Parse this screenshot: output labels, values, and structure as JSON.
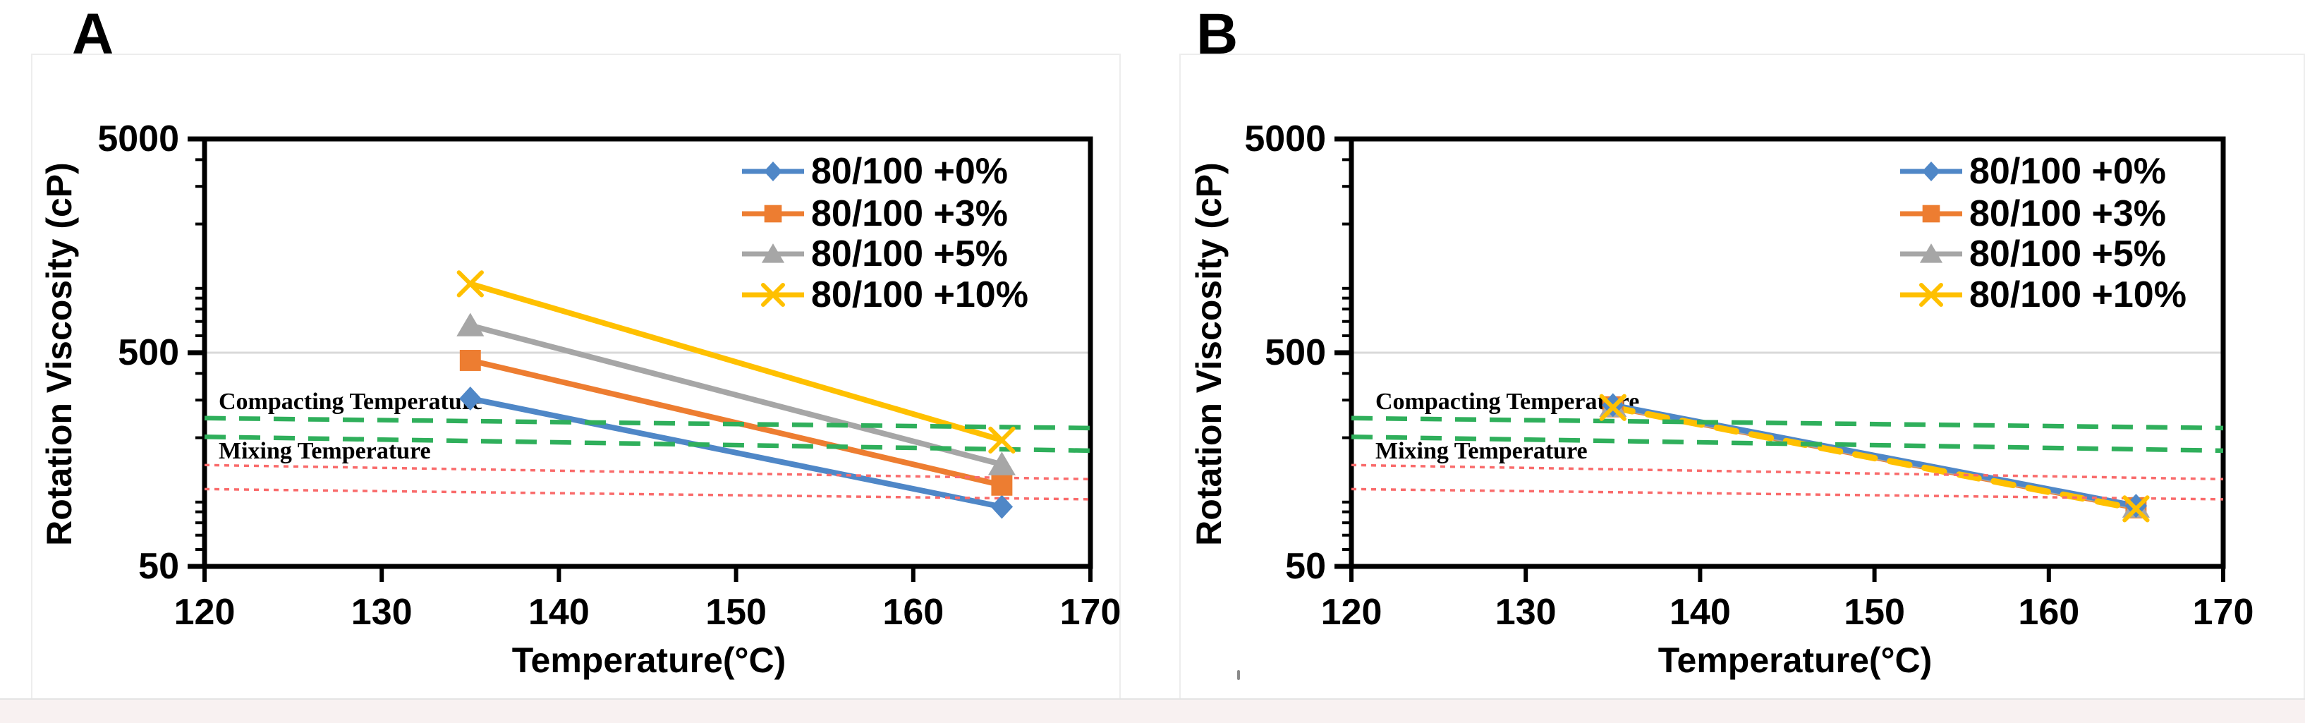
{
  "figure": {
    "background": "#FFFFFF",
    "separator_color": "#E4E4E4",
    "footer_strip_color": "#F8F1F1",
    "panel_border_color": "#EDEDED",
    "text_color": "#000000"
  },
  "chart_data": [
    {
      "type": "line",
      "panel_label": "A",
      "xlabel": "Temperature(°C)",
      "ylabel": "Rotation Viscosity (cP)",
      "x_axis": {
        "min": 120,
        "max": 170,
        "ticks": [
          120,
          130,
          140,
          150,
          160,
          170
        ]
      },
      "y_axis": {
        "scale": "log",
        "min": 50,
        "max": 5000,
        "ticks": [
          5000,
          500,
          50
        ],
        "minor_ticks": [
          4000,
          3000,
          2000,
          1000,
          900,
          800,
          700,
          600,
          400,
          300,
          200,
          100,
          90,
          80,
          70,
          60
        ]
      },
      "grid": {
        "y_gridlines_cp": [
          500
        ],
        "gridline_color": "#D9D9D9"
      },
      "legend_position": "top-right-inside",
      "series": [
        {
          "name": "80/100 +0%",
          "color": "#4F87C7",
          "marker": "diamond",
          "line_style": "solid",
          "x": [
            135,
            165
          ],
          "y": [
            305,
            95
          ]
        },
        {
          "name": "80/100 +3%",
          "color": "#ED7D31",
          "marker": "square",
          "line_style": "solid",
          "x": [
            135,
            165
          ],
          "y": [
            460,
            120
          ]
        },
        {
          "name": "80/100 +5%",
          "color": "#A6A6A6",
          "marker": "triangle",
          "line_style": "solid",
          "x": [
            135,
            165
          ],
          "y": [
            670,
            150
          ]
        },
        {
          "name": "80/100 +10%",
          "color": "#FFC000",
          "marker": "x",
          "line_style": "solid",
          "x": [
            135,
            165
          ],
          "y": [
            1050,
            195
          ]
        }
      ],
      "guide_lines": [
        {
          "group": "compacting",
          "color": "#2FAF5B",
          "style": "dashed",
          "cp_start": 247,
          "cp_end": 222
        },
        {
          "group": "compacting",
          "color": "#2FAF5B",
          "style": "dashed",
          "cp_start": 202,
          "cp_end": 174
        },
        {
          "group": "mixing",
          "color": "#F96B6B",
          "style": "dotted",
          "cp_start": 149,
          "cp_end": 128
        },
        {
          "group": "mixing",
          "color": "#F96B6B",
          "style": "dotted",
          "cp_start": 115,
          "cp_end": 103
        }
      ],
      "guide_labels": [
        {
          "text": "Compacting Temperature"
        },
        {
          "text": "Mixing Temperature"
        }
      ]
    },
    {
      "type": "line",
      "panel_label": "B",
      "xlabel": "Temperature(°C)",
      "ylabel": "Rotation Viscosity (cP)",
      "x_axis": {
        "min": 120,
        "max": 170,
        "ticks": [
          120,
          130,
          140,
          150,
          160,
          170
        ]
      },
      "y_axis": {
        "scale": "log",
        "min": 50,
        "max": 5000,
        "ticks": [
          5000,
          500,
          50
        ],
        "minor_ticks": [
          4000,
          3000,
          2000,
          1000,
          900,
          800,
          700,
          600,
          400,
          300,
          200,
          100,
          90,
          80,
          70,
          60
        ]
      },
      "grid": {
        "y_gridlines_cp": [
          500
        ],
        "gridline_color": "#D9D9D9"
      },
      "legend_position": "top-right-inside",
      "series": [
        {
          "name": "80/100 +0%",
          "color": "#4F87C7",
          "marker": "diamond",
          "line_style": "solid",
          "x": [
            135,
            165
          ],
          "y": [
            284,
            96
          ]
        },
        {
          "name": "80/100 +3%",
          "color": "#ED7D31",
          "marker": "square",
          "line_style": "solid",
          "x": [
            135,
            165
          ],
          "y": [
            279,
            94
          ]
        },
        {
          "name": "80/100 +5%",
          "color": "#A6A6A6",
          "marker": "triangle",
          "line_style": "solid",
          "x": [
            135,
            165
          ],
          "y": [
            281,
            95
          ]
        },
        {
          "name": "80/100 +10%",
          "color": "#FFC000",
          "marker": "x",
          "line_style": "dashed",
          "x": [
            135,
            165
          ],
          "y": [
            277,
            93
          ]
        }
      ],
      "guide_lines": [
        {
          "group": "compacting",
          "color": "#2FAF5B",
          "style": "dashed",
          "cp_start": 247,
          "cp_end": 222
        },
        {
          "group": "compacting",
          "color": "#2FAF5B",
          "style": "dashed",
          "cp_start": 202,
          "cp_end": 174
        },
        {
          "group": "mixing",
          "color": "#F96B6B",
          "style": "dotted",
          "cp_start": 149,
          "cp_end": 128
        },
        {
          "group": "mixing",
          "color": "#F96B6B",
          "style": "dotted",
          "cp_start": 115,
          "cp_end": 103
        }
      ],
      "guide_labels": [
        {
          "text": "Compacting Temperature"
        },
        {
          "text": "Mixing Temperature"
        }
      ]
    }
  ]
}
